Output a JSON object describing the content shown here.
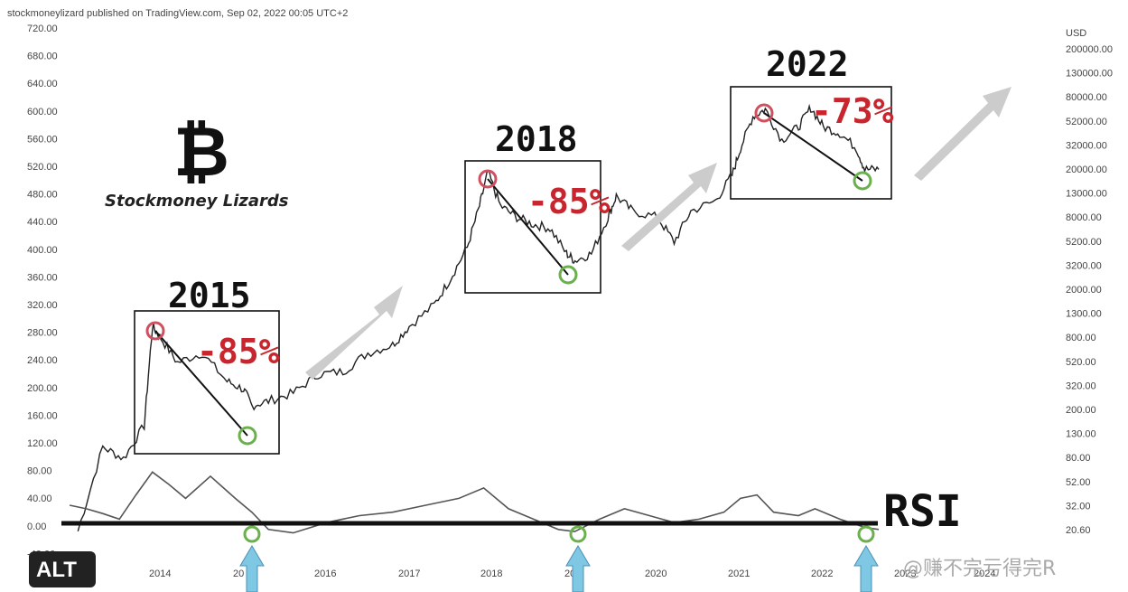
{
  "header": "stockmoneylizard published on TradingView.com, Sep 02, 2022 00:05 UTC+2",
  "brand": {
    "name": "Stockmoney Lizards",
    "symbol": "₿"
  },
  "badge": "ALT",
  "watermark": "@赚不完亏得完R",
  "rsi_label": "RSI",
  "chart_data": {
    "type": "line",
    "title": "",
    "left_axis": {
      "ticks": [
        "720.00",
        "680.00",
        "640.00",
        "600.00",
        "560.00",
        "520.00",
        "480.00",
        "440.00",
        "400.00",
        "360.00",
        "320.00",
        "280.00",
        "240.00",
        "200.00",
        "160.00",
        "120.00",
        "80.00",
        "40.00",
        "0.00",
        "-40.00"
      ]
    },
    "right_axis": {
      "unit": "USD",
      "scale": "log",
      "ticks": [
        "200000.00",
        "130000.00",
        "80000.00",
        "52000.00",
        "32000.00",
        "20000.00",
        "13000.00",
        "8000.00",
        "5200.00",
        "3200.00",
        "2000.00",
        "1300.00",
        "800.00",
        "520.00",
        "320.00",
        "200.00",
        "130.00",
        "80.00",
        "52.00",
        "32.00",
        "20.60"
      ]
    },
    "x_axis": {
      "ticks": [
        "2014",
        "20",
        "2016",
        "2017",
        "2018",
        "20",
        "2020",
        "2021",
        "2022",
        "2023",
        "2024"
      ]
    },
    "cycles": [
      {
        "year": "2015",
        "drawdown": "-85%"
      },
      {
        "year": "2018",
        "drawdown": "-85%"
      },
      {
        "year": "2022",
        "drawdown": "-73%"
      }
    ],
    "price_series": {
      "name": "BTC price",
      "x": [
        2013.0,
        2013.3,
        2013.55,
        2013.8,
        2013.9,
        2014.0,
        2014.2,
        2014.5,
        2014.8,
        2015.0,
        2015.1,
        2015.3,
        2015.6,
        2015.9,
        2016.2,
        2016.5,
        2016.8,
        2017.0,
        2017.3,
        2017.5,
        2017.7,
        2017.85,
        2017.95,
        2018.1,
        2018.3,
        2018.5,
        2018.7,
        2018.9,
        2019.0,
        2019.2,
        2019.4,
        2019.5,
        2019.7,
        2020.0,
        2020.2,
        2020.4,
        2020.7,
        2020.9,
        2021.0,
        2021.15,
        2021.3,
        2021.5,
        2021.7,
        2021.85,
        2022.0,
        2022.2,
        2022.4,
        2022.5,
        2022.67
      ],
      "y": [
        20,
        100,
        80,
        150,
        1000,
        800,
        500,
        600,
        350,
        300,
        220,
        240,
        280,
        400,
        420,
        600,
        700,
        1000,
        1500,
        2500,
        4500,
        10000,
        19000,
        10000,
        8000,
        7000,
        6500,
        4000,
        3500,
        4000,
        8000,
        12000,
        9000,
        8000,
        5000,
        9000,
        11000,
        18000,
        30000,
        55000,
        63000,
        35000,
        45000,
        65000,
        45000,
        40000,
        30000,
        20000,
        20000
      ]
    },
    "rsi_series": {
      "name": "RSI",
      "x": [
        2012.9,
        2013.1,
        2013.3,
        2013.5,
        2013.7,
        2013.9,
        2014.1,
        2014.3,
        2014.6,
        2014.9,
        2015.1,
        2015.3,
        2015.6,
        2016.0,
        2016.4,
        2016.8,
        2017.2,
        2017.6,
        2017.9,
        2018.2,
        2018.5,
        2018.8,
        2019.0,
        2019.3,
        2019.6,
        2019.9,
        2020.2,
        2020.5,
        2020.8,
        2021.0,
        2021.2,
        2021.4,
        2021.7,
        2021.9,
        2022.2,
        2022.5,
        2022.67
      ],
      "y": [
        30,
        25,
        18,
        10,
        45,
        78,
        60,
        40,
        72,
        40,
        20,
        -5,
        -10,
        5,
        15,
        20,
        30,
        40,
        55,
        25,
        10,
        -5,
        -8,
        10,
        25,
        15,
        5,
        10,
        20,
        40,
        45,
        20,
        15,
        25,
        10,
        -2,
        -5
      ]
    }
  }
}
